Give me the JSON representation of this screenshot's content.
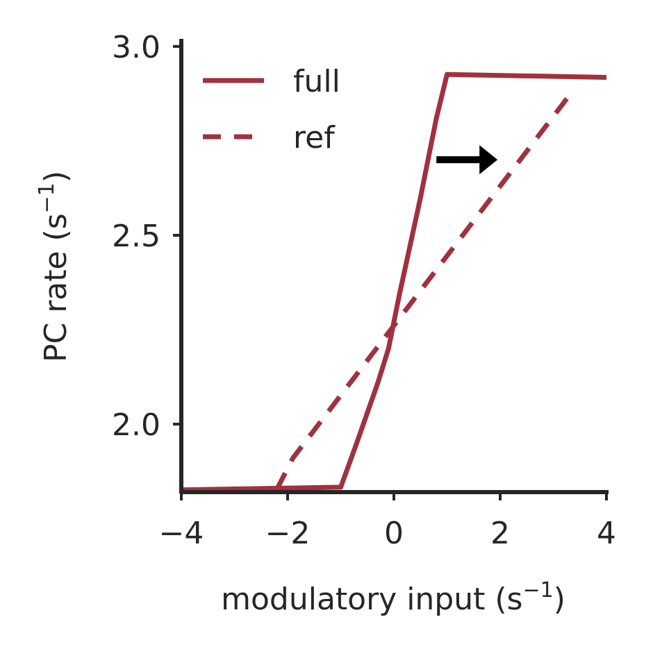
{
  "chart_data": {
    "type": "line",
    "xlabel_main": "modulatory input (s",
    "xlabel_sup": "−1",
    "xlabel_close": ")",
    "ylabel_main": "PC rate (s",
    "ylabel_sup": "−1",
    "ylabel_close": ")",
    "xlim": [
      -4,
      4
    ],
    "ylim": [
      1.82,
      3.02
    ],
    "xticks": [
      -4,
      -2,
      0,
      2,
      4
    ],
    "xtick_labels": [
      "−4",
      "−2",
      "0",
      "2",
      "4"
    ],
    "yticks": [
      2.0,
      2.5,
      3.0
    ],
    "ytick_labels": [
      "2.0",
      "2.5",
      "3.0"
    ],
    "grid": false,
    "legend_position": "top-left",
    "series": [
      {
        "name": "full",
        "style": "solid",
        "color": "#a0313e",
        "x": [
          -4.0,
          -1.0,
          -0.7,
          -0.5,
          -0.3,
          -0.1,
          0.1,
          0.3,
          0.5,
          0.7,
          0.8,
          1.0,
          4.0
        ],
        "y": [
          1.826,
          1.833,
          1.95,
          2.03,
          2.11,
          2.2,
          2.34,
          2.47,
          2.6,
          2.74,
          2.81,
          2.926,
          2.918
        ]
      },
      {
        "name": "ref",
        "style": "dashed",
        "color": "#a0313e",
        "x": [
          -2.2,
          -1.9,
          3.3
        ],
        "y": [
          1.828,
          1.91,
          2.87
        ]
      }
    ],
    "annotation": {
      "type": "arrow",
      "direction": "right",
      "color": "#000000",
      "from": [
        0.8,
        2.7
      ],
      "to": [
        1.95,
        2.7
      ]
    }
  }
}
